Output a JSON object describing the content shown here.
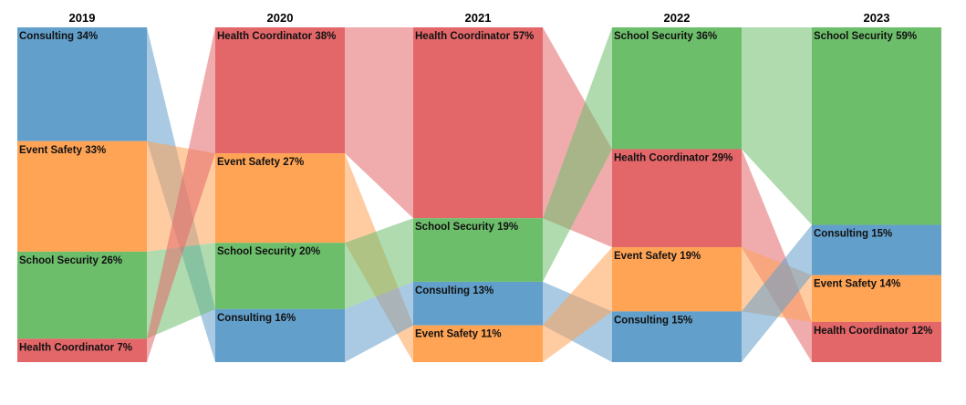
{
  "chart_data": {
    "type": "bump-area",
    "title": "",
    "columns": [
      "2019",
      "2020",
      "2021",
      "2022",
      "2023"
    ],
    "categories": [
      "Consulting",
      "Event Safety",
      "School Security",
      "Health Coordinator"
    ],
    "colors": {
      "Consulting": "#629fca",
      "Event Safety": "#ffa355",
      "School Security": "#6dbe6b",
      "Health Coordinator": "#e36769"
    },
    "stacks": [
      [
        {
          "name": "Consulting",
          "value": 34,
          "label": "Consulting 34%"
        },
        {
          "name": "Event Safety",
          "value": 33,
          "label": "Event Safety 33%"
        },
        {
          "name": "School Security",
          "value": 26,
          "label": "School Security 26%"
        },
        {
          "name": "Health Coordinator",
          "value": 7,
          "label": "Health Coordinator 7%"
        }
      ],
      [
        {
          "name": "Health Coordinator",
          "value": 38,
          "label": "Health Coordinator 38%"
        },
        {
          "name": "Event Safety",
          "value": 27,
          "label": "Event Safety 27%"
        },
        {
          "name": "School Security",
          "value": 20,
          "label": "School Security 20%"
        },
        {
          "name": "Consulting",
          "value": 16,
          "label": "Consulting 16%"
        }
      ],
      [
        {
          "name": "Health Coordinator",
          "value": 57,
          "label": "Health Coordinator 57%"
        },
        {
          "name": "School Security",
          "value": 19,
          "label": "School Security 19%"
        },
        {
          "name": "Consulting",
          "value": 13,
          "label": "Consulting 13%"
        },
        {
          "name": "Event Safety",
          "value": 11,
          "label": "Event Safety 11%"
        }
      ],
      [
        {
          "name": "School Security",
          "value": 36,
          "label": "School Security 36%"
        },
        {
          "name": "Health Coordinator",
          "value": 29,
          "label": "Health Coordinator 29%"
        },
        {
          "name": "Event Safety",
          "value": 19,
          "label": "Event Safety 19%"
        },
        {
          "name": "Consulting",
          "value": 15,
          "label": "Consulting 15%"
        }
      ],
      [
        {
          "name": "School Security",
          "value": 59,
          "label": "School Security 59%"
        },
        {
          "name": "Consulting",
          "value": 15,
          "label": "Consulting 15%"
        },
        {
          "name": "Event Safety",
          "value": 14,
          "label": "Event Safety 14%"
        },
        {
          "name": "Health Coordinator",
          "value": 12,
          "label": "Health Coordinator 12%"
        }
      ]
    ],
    "legend": "none",
    "grid": false
  }
}
